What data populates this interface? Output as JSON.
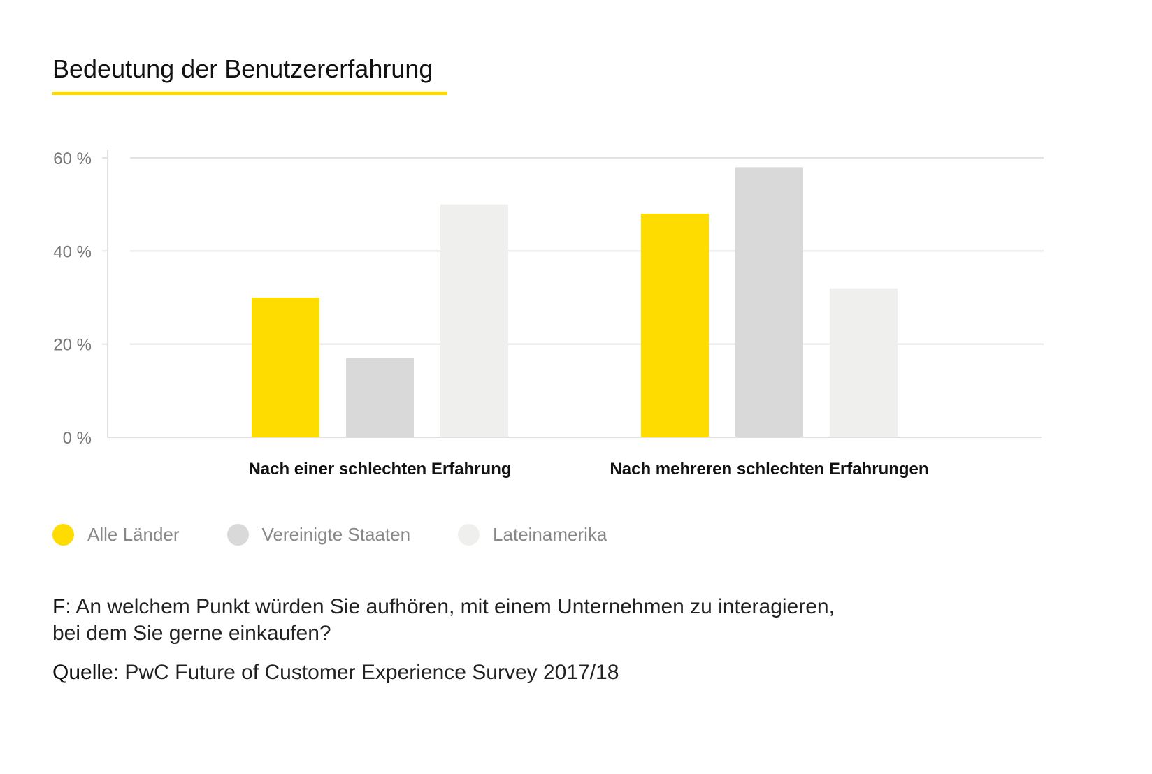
{
  "chart_data": {
    "type": "bar",
    "title": "Bedeutung der Benutzererfahrung",
    "categories": [
      "Nach einer schlechten Erfahrung",
      "Nach mehreren schlechten Erfahrungen"
    ],
    "series": [
      {
        "name": "Alle Länder",
        "color": "#FFDC00",
        "values": [
          30,
          48
        ]
      },
      {
        "name": "Vereinigte Staaten",
        "color": "#D9D9D9",
        "values": [
          17,
          58
        ]
      },
      {
        "name": "Lateinamerika",
        "color": "#EFEFEE",
        "values": [
          50,
          32
        ]
      }
    ],
    "yticks": [
      "0 %",
      "20 %",
      "40 %",
      "60 %"
    ],
    "ylim": [
      0,
      60
    ],
    "grid": true,
    "legend": "bottom-left"
  },
  "footer": {
    "question_label": "F:",
    "question_text": "An welchem Punkt würden Sie aufhören, mit einem Unternehmen zu interagieren,",
    "question_text2": "bei dem Sie gerne einkaufen?",
    "source_label": "Quelle:",
    "source_text": "PwC Future of Customer Experience Survey 2017/18"
  }
}
